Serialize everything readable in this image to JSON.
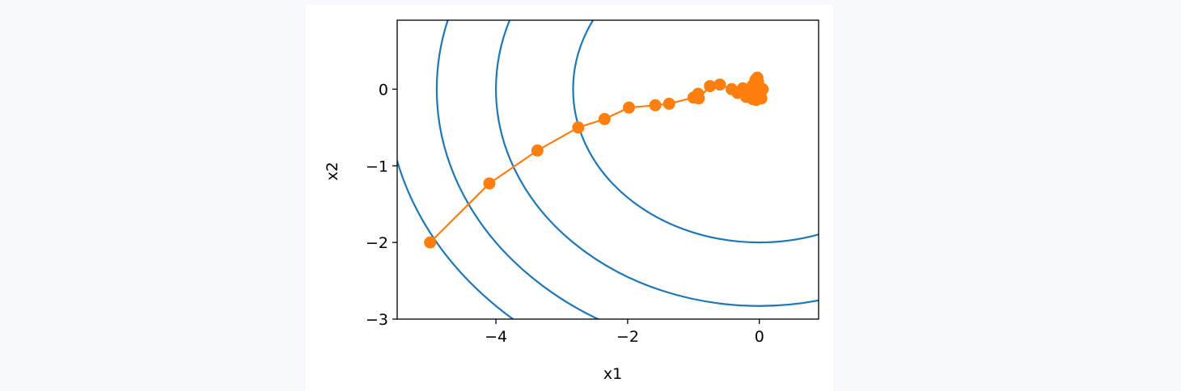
{
  "chart_data": {
    "type": "line",
    "xlabel": "x1",
    "ylabel": "x2",
    "xlim": [
      -5.5,
      0.9
    ],
    "ylim": [
      -3.0,
      0.9
    ],
    "x_ticks": [
      -4,
      -2,
      0
    ],
    "x_tick_labels": [
      "−4",
      "−2",
      "0"
    ],
    "y_ticks": [
      -3,
      -2,
      -1,
      0
    ],
    "y_tick_labels": [
      "−3",
      "−2",
      "−1",
      "0"
    ],
    "grid": false,
    "contour": {
      "function": "x1^2 + 2*x2^2",
      "levels": [
        8,
        16,
        24,
        32
      ],
      "color": "#1f77b4"
    },
    "series": [
      {
        "marker": "circle",
        "color": "#ff7f0e",
        "x": [
          -5.0,
          -4.1,
          -3.37,
          -2.75,
          -2.35,
          -1.98,
          -1.58,
          -1.37,
          -1.0,
          -0.93,
          -0.92,
          -0.75,
          -0.6,
          -0.42,
          -0.33,
          -0.25,
          -0.2,
          -0.15,
          -0.1,
          -0.06,
          -0.03,
          0.0,
          0.02,
          0.03,
          -0.05,
          -0.08,
          -0.12,
          -0.02,
          0.05,
          -0.1
        ],
        "y": [
          -2.0,
          -1.23,
          -0.8,
          -0.5,
          -0.39,
          -0.24,
          -0.21,
          -0.19,
          -0.11,
          -0.06,
          -0.12,
          0.04,
          0.06,
          0.0,
          -0.05,
          0.01,
          -0.1,
          -0.03,
          0.05,
          0.12,
          0.15,
          0.02,
          -0.05,
          -0.12,
          -0.14,
          -0.08,
          -0.02,
          0.1,
          0.0,
          -0.13
        ]
      }
    ]
  }
}
